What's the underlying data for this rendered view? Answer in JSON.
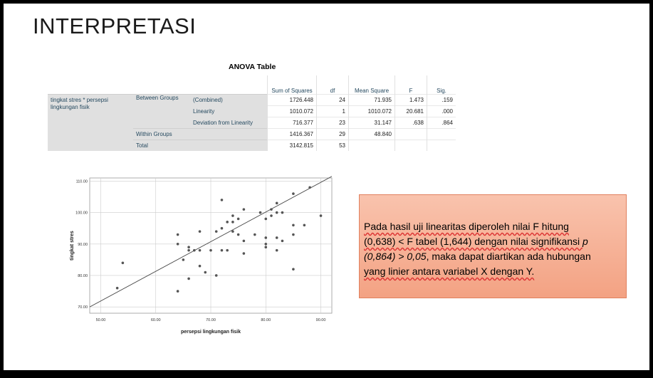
{
  "slide": {
    "title": "INTERPRETASI"
  },
  "anova": {
    "title": "ANOVA Table",
    "headers": [
      "Sum of Squares",
      "df",
      "Mean Square",
      "F",
      "Sig."
    ],
    "row_label": "tingkat stres * persepsi lingkungan fisik",
    "between_groups": "Between Groups",
    "within_groups": "Within Groups",
    "total": "Total",
    "rows": [
      {
        "label": "(Combined)",
        "ss": "1726.448",
        "df": "24",
        "ms": "71.935",
        "f": "1.473",
        "sig": ".159"
      },
      {
        "label": "Linearity",
        "ss": "1010.072",
        "df": "1",
        "ms": "1010.072",
        "f": "20.681",
        "sig": ".000"
      },
      {
        "label": "Deviation from Linearity",
        "ss": "716.377",
        "df": "23",
        "ms": "31.147",
        "f": ".638",
        "sig": ".864"
      },
      {
        "label": "",
        "ss": "1416.367",
        "df": "29",
        "ms": "48.840",
        "f": "",
        "sig": ""
      },
      {
        "label": "",
        "ss": "3142.815",
        "df": "53",
        "ms": "",
        "f": "",
        "sig": ""
      }
    ]
  },
  "chart_data": {
    "type": "scatter",
    "xlabel": "persepsi lingkungan fisik",
    "ylabel": "tingkat stres",
    "xlim": [
      48,
      92
    ],
    "ylim": [
      68,
      111
    ],
    "xticks": [
      "50.00",
      "60.00",
      "70.00",
      "80.00",
      "90.00"
    ],
    "yticks": [
      "70.00",
      "80.00",
      "90.00",
      "100.00",
      "110.00"
    ],
    "grid": true,
    "fit_line": {
      "x": [
        48,
        92
      ],
      "y": [
        70.0,
        111.5
      ]
    },
    "points": [
      [
        53,
        76
      ],
      [
        54,
        84
      ],
      [
        64,
        93
      ],
      [
        64,
        90
      ],
      [
        64,
        75
      ],
      [
        65,
        85
      ],
      [
        66,
        89
      ],
      [
        66,
        88
      ],
      [
        66,
        79
      ],
      [
        67,
        88
      ],
      [
        68,
        94
      ],
      [
        68,
        88
      ],
      [
        68,
        83
      ],
      [
        69,
        81
      ],
      [
        70,
        88
      ],
      [
        71,
        94
      ],
      [
        71,
        80
      ],
      [
        72,
        104
      ],
      [
        72,
        95
      ],
      [
        72,
        88
      ],
      [
        73,
        97
      ],
      [
        73,
        88
      ],
      [
        74,
        99
      ],
      [
        74,
        97
      ],
      [
        74,
        94
      ],
      [
        75,
        98
      ],
      [
        75,
        93
      ],
      [
        76,
        101
      ],
      [
        76,
        91
      ],
      [
        76,
        87
      ],
      [
        78,
        93
      ],
      [
        79,
        100
      ],
      [
        80,
        98
      ],
      [
        80,
        92
      ],
      [
        80,
        90
      ],
      [
        80,
        89
      ],
      [
        81,
        101
      ],
      [
        81,
        99
      ],
      [
        82,
        103
      ],
      [
        82,
        100
      ],
      [
        82,
        92
      ],
      [
        82,
        88
      ],
      [
        83,
        100
      ],
      [
        83,
        91
      ],
      [
        85,
        106
      ],
      [
        85,
        96
      ],
      [
        85,
        93
      ],
      [
        85,
        82
      ],
      [
        87,
        96
      ],
      [
        88,
        108
      ],
      [
        90,
        99
      ]
    ]
  },
  "textbox": {
    "p1": "Pada hasil uji linearitas diperoleh nilai F hitung",
    "p2": "(0,638) <  F tabel (1,644) dengan nilai signifikansi ",
    "p3": "p",
    "p4": "(0,864) > 0,05",
    "p5": ", maka dapat diartikan ada hubungan",
    "p6": "yang linier antara variabel X dengan Y."
  }
}
